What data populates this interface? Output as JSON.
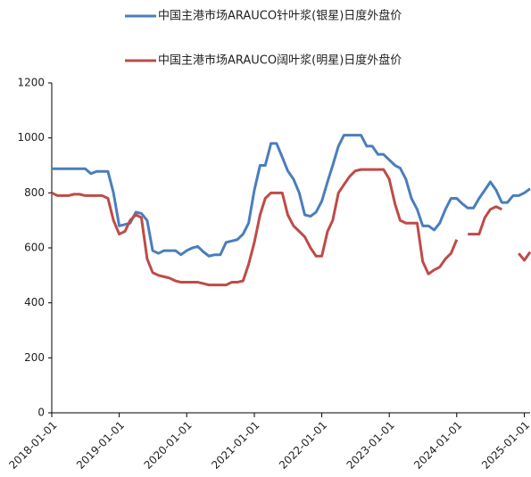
{
  "chart_data": {
    "type": "line",
    "x": [
      "2018-01-01",
      "2018-02-01",
      "2018-03-01",
      "2018-04-01",
      "2018-05-01",
      "2018-06-01",
      "2018-07-01",
      "2018-08-01",
      "2018-09-01",
      "2018-10-01",
      "2018-11-01",
      "2018-12-01",
      "2019-01-01",
      "2019-02-01",
      "2019-03-01",
      "2019-04-01",
      "2019-05-01",
      "2019-06-01",
      "2019-07-01",
      "2019-08-01",
      "2019-09-01",
      "2019-10-01",
      "2019-11-01",
      "2019-12-01",
      "2020-01-01",
      "2020-02-01",
      "2020-03-01",
      "2020-04-01",
      "2020-05-01",
      "2020-06-01",
      "2020-07-01",
      "2020-08-01",
      "2020-09-01",
      "2020-10-01",
      "2020-11-01",
      "2020-12-01",
      "2021-01-01",
      "2021-02-01",
      "2021-03-01",
      "2021-04-01",
      "2021-05-01",
      "2021-06-01",
      "2021-07-01",
      "2021-08-01",
      "2021-09-01",
      "2021-10-01",
      "2021-11-01",
      "2021-12-01",
      "2022-01-01",
      "2022-02-01",
      "2022-03-01",
      "2022-04-01",
      "2022-05-01",
      "2022-06-01",
      "2022-07-01",
      "2022-08-01",
      "2022-09-01",
      "2022-10-01",
      "2022-11-01",
      "2022-12-01",
      "2023-01-01",
      "2023-02-01",
      "2023-03-01",
      "2023-04-01",
      "2023-05-01",
      "2023-06-01",
      "2023-07-01",
      "2023-08-01",
      "2023-09-01",
      "2023-10-01",
      "2023-11-01",
      "2023-12-01",
      "2024-01-01",
      "2024-02-01",
      "2024-03-01",
      "2024-04-01",
      "2024-05-01",
      "2024-06-01",
      "2024-07-01",
      "2024-08-01",
      "2024-09-01",
      "2024-10-01",
      "2024-11-01",
      "2024-12-01",
      "2025-01-01",
      "2025-02-01"
    ],
    "series": [
      {
        "name": "中国主港市场ARAUCO针叶浆(银星)日度外盘价",
        "color": "#4a7ebb",
        "values": [
          888,
          888,
          888,
          888,
          888,
          888,
          888,
          870,
          878,
          878,
          878,
          800,
          680,
          685,
          690,
          730,
          725,
          700,
          590,
          580,
          590,
          590,
          590,
          575,
          590,
          600,
          605,
          585,
          570,
          575,
          575,
          620,
          625,
          630,
          650,
          690,
          810,
          900,
          900,
          980,
          980,
          930,
          880,
          850,
          800,
          720,
          715,
          730,
          770,
          840,
          900,
          970,
          1010,
          1010,
          1010,
          1010,
          970,
          970,
          940,
          940,
          920,
          900,
          890,
          850,
          780,
          740,
          680,
          680,
          665,
          690,
          740,
          780,
          780,
          760,
          745,
          745,
          780,
          810,
          840,
          810,
          765,
          765,
          790,
          790,
          800,
          815
        ]
      },
      {
        "name": "中国主港市场ARAUCO阔叶浆(明星)日度外盘价",
        "color": "#be4b48",
        "values": [
          800,
          790,
          790,
          790,
          795,
          795,
          790,
          790,
          790,
          790,
          780,
          700,
          650,
          660,
          700,
          720,
          710,
          560,
          510,
          500,
          495,
          490,
          480,
          475,
          475,
          475,
          475,
          470,
          465,
          465,
          465,
          465,
          475,
          475,
          480,
          540,
          620,
          720,
          780,
          800,
          800,
          800,
          720,
          680,
          660,
          640,
          600,
          570,
          570,
          660,
          700,
          800,
          830,
          860,
          880,
          885,
          885,
          885,
          885,
          885,
          850,
          760,
          700,
          690,
          690,
          690,
          550,
          505,
          520,
          530,
          560,
          580,
          630,
          null,
          650,
          650,
          650,
          710,
          740,
          750,
          740,
          null,
          null,
          580,
          555,
          585
        ]
      }
    ],
    "xlim": [
      "2018-01-01",
      "2025-02-01"
    ],
    "xticks": [
      "2018-01-01",
      "2019-01-01",
      "2020-01-01",
      "2021-01-01",
      "2022-01-01",
      "2023-01-01",
      "2024-01-01",
      "2025-01-01"
    ],
    "ylim": [
      0,
      1200
    ],
    "yticks": [
      0,
      200,
      400,
      600,
      800,
      1000,
      1200
    ],
    "grid": false
  }
}
